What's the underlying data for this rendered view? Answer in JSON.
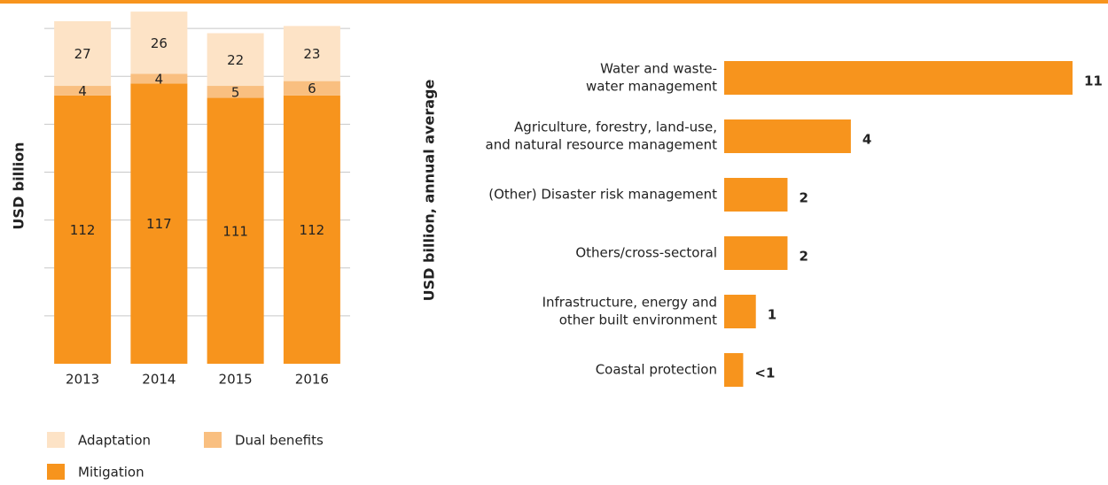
{
  "chart_data": [
    {
      "type": "stacked-bar",
      "y_label": "USD billion",
      "categories": [
        "2013",
        "2014",
        "2015",
        "2016"
      ],
      "series": [
        {
          "name": "Mitigation",
          "color": "#f7941d",
          "values": [
            112,
            117,
            111,
            112
          ]
        },
        {
          "name": "Dual benefits",
          "color": "#f9bf80",
          "values": [
            4,
            4,
            5,
            6
          ]
        },
        {
          "name": "Adaptation",
          "color": "#fde3c6",
          "values": [
            27,
            26,
            22,
            23
          ]
        }
      ],
      "ylim": [
        0,
        150
      ],
      "yticks": [
        20,
        40,
        60,
        80,
        100,
        120,
        140
      ],
      "grid": true
    },
    {
      "type": "hbar",
      "x_label": "USD billion, annual average",
      "categories": [
        [
          "Water and waste-",
          "water management"
        ],
        [
          "Agriculture, forestry, land-use,",
          "and natural resource management"
        ],
        [
          "(Other) Disaster risk management"
        ],
        [
          "Others/cross-sectoral"
        ],
        [
          "Infrastructure, energy and",
          "other built environment"
        ],
        [
          "Coastal protection"
        ]
      ],
      "values": [
        11,
        4,
        2,
        2,
        1,
        0.6
      ],
      "value_labels": [
        "11",
        "4",
        "2",
        "2",
        "1",
        "<1"
      ],
      "color": "#f7941d",
      "xlim": [
        0,
        11
      ]
    }
  ]
}
